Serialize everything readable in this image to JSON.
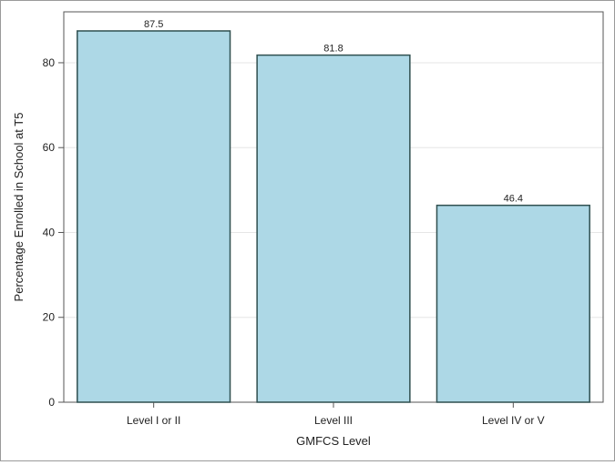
{
  "chart_data": {
    "type": "bar",
    "categories": [
      "Level I or II",
      "Level III",
      "Level IV or V"
    ],
    "values": [
      87.5,
      81.8,
      46.4
    ],
    "data_labels": [
      "87.5",
      "81.8",
      "46.4"
    ],
    "xlabel": "GMFCS Level",
    "ylabel": "Percentage Enrolled in School at T5",
    "ylim": [
      0,
      92
    ],
    "yticks": [
      0,
      20,
      40,
      60,
      80
    ],
    "grid": "horizontal",
    "colors": {
      "bar_fill": "#add8e6",
      "bar_stroke": "#2f4f4f",
      "grid": "#e6e6e6",
      "axis": "#555555"
    }
  }
}
